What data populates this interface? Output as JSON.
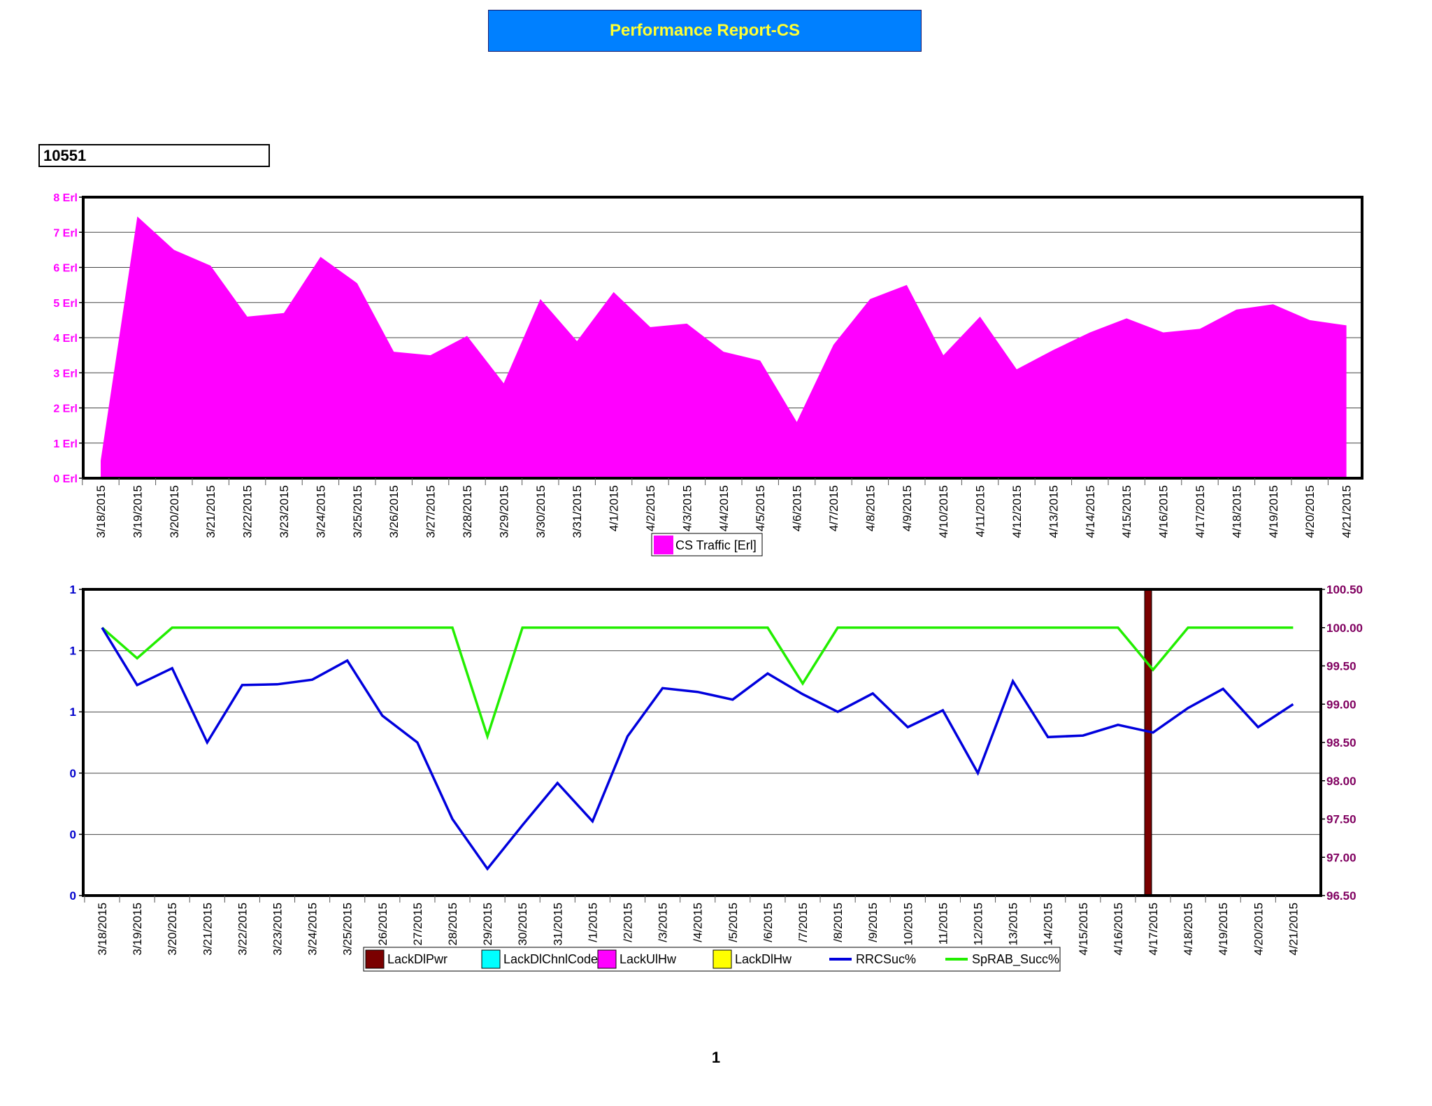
{
  "report": {
    "title": "Performance Report-CS",
    "site_id": "10551",
    "page_number": "1"
  },
  "colors": {
    "title_bg": "#0080ff",
    "title_text": "#ffff33",
    "traffic": "#ff00ff",
    "rrc": "#0000dd",
    "sprab": "#22ee00",
    "left_axis": "#0000cc",
    "right_axis": "#800060",
    "lack_dl_pwr": "#7a0000",
    "lack_dl_chnl_code": "#00ffff",
    "lack_ul_hw": "#ff00ff",
    "lack_dl_hw": "#ffff00"
  },
  "chart_data": [
    {
      "type": "area",
      "categories": [
        "3/18/2015",
        "3/19/2015",
        "3/20/2015",
        "3/21/2015",
        "3/22/2015",
        "3/23/2015",
        "3/24/2015",
        "3/25/2015",
        "3/26/2015",
        "3/27/2015",
        "3/28/2015",
        "3/29/2015",
        "3/30/2015",
        "3/31/2015",
        "4/1/2015",
        "4/2/2015",
        "4/3/2015",
        "4/4/2015",
        "4/5/2015",
        "4/6/2015",
        "4/7/2015",
        "4/8/2015",
        "4/9/2015",
        "4/10/2015",
        "4/11/2015",
        "4/12/2015",
        "4/13/2015",
        "4/14/2015",
        "4/15/2015",
        "4/16/2015",
        "4/17/2015",
        "4/18/2015",
        "4/19/2015",
        "4/20/2015",
        "4/21/2015"
      ],
      "series": [
        {
          "name": "CS Traffic [Erl]",
          "values": [
            0.5,
            7.45,
            6.5,
            6.05,
            4.6,
            4.7,
            6.3,
            5.55,
            3.6,
            3.5,
            4.05,
            2.7,
            5.1,
            3.9,
            5.3,
            4.3,
            4.4,
            3.6,
            3.35,
            1.6,
            3.8,
            5.1,
            5.5,
            3.5,
            4.6,
            3.1,
            3.65,
            4.15,
            4.55,
            4.15,
            4.25,
            4.8,
            4.95,
            4.5,
            4.35
          ]
        }
      ],
      "yticks": [
        "0 Erl",
        "1 Erl",
        "2 Erl",
        "3 Erl",
        "4 Erl",
        "5 Erl",
        "6 Erl",
        "7 Erl",
        "8 Erl"
      ],
      "ylim": [
        0,
        8
      ],
      "grid": true,
      "legend_position": "bottom-center"
    },
    {
      "type": "line",
      "categories": [
        "3/18/2015",
        "3/19/2015",
        "3/20/2015",
        "3/21/2015",
        "3/22/2015",
        "3/23/2015",
        "3/24/2015",
        "3/25/2015",
        "3/26/2015",
        "3/27/2015",
        "3/28/2015",
        "3/29/2015",
        "3/30/2015",
        "3/31/2015",
        "4/1/2015",
        "4/2/2015",
        "4/3/2015",
        "4/4/2015",
        "4/5/2015",
        "4/6/2015",
        "4/7/2015",
        "4/8/2015",
        "4/9/2015",
        "4/10/2015",
        "4/11/2015",
        "4/12/2015",
        "4/13/2015",
        "4/14/2015",
        "4/15/2015",
        "4/16/2015",
        "4/17/2015",
        "4/18/2015",
        "4/19/2015",
        "4/20/2015",
        "4/21/2015"
      ],
      "tick_labels": [
        "3/18/2015",
        "3/19/2015",
        "3/20/2015",
        "3/21/2015",
        "3/22/2015",
        "3/23/2015",
        "3/24/2015",
        "3/25/2015",
        "26/2015",
        "27/2015",
        "28/2015",
        "29/2015",
        "30/2015",
        "31/2015",
        "/1/2015",
        "/2/2015",
        "/3/2015",
        "/4/2015",
        "/5/2015",
        "/6/2015",
        "/7/2015",
        "/8/2015",
        "/9/2015",
        "10/2015",
        "11/2015",
        "12/2015",
        "13/2015",
        "14/2015",
        "4/15/2015",
        "4/16/2015",
        "4/17/2015",
        "4/18/2015",
        "4/19/2015",
        "4/20/2015",
        "4/21/2015"
      ],
      "series": [
        {
          "name": "LackDlPwr",
          "type": "bar",
          "values": [
            0,
            0,
            0,
            0,
            0,
            0,
            0,
            0,
            0,
            0,
            0,
            0,
            0,
            0,
            0,
            0,
            0,
            0,
            0,
            0,
            0,
            0,
            0,
            0,
            0,
            0,
            0,
            0,
            0,
            0,
            1,
            0,
            0,
            0,
            0
          ]
        },
        {
          "name": "LackDlChnlCode",
          "type": "bar",
          "values": [
            0,
            0,
            0,
            0,
            0,
            0,
            0,
            0,
            0,
            0,
            0,
            0,
            0,
            0,
            0,
            0,
            0,
            0,
            0,
            0,
            0,
            0,
            0,
            0,
            0,
            0,
            0,
            0,
            0,
            0,
            0,
            0,
            0,
            0,
            0
          ]
        },
        {
          "name": "LackUlHw",
          "type": "bar",
          "values": [
            0,
            0,
            0,
            0,
            0,
            0,
            0,
            0,
            0,
            0,
            0,
            0,
            0,
            0,
            0,
            0,
            0,
            0,
            0,
            0,
            0,
            0,
            0,
            0,
            0,
            0,
            0,
            0,
            0,
            0,
            0,
            0,
            0,
            0,
            0
          ]
        },
        {
          "name": "LackDlHw",
          "type": "bar",
          "values": [
            0,
            0,
            0,
            0,
            0,
            0,
            0,
            0,
            0,
            0,
            0,
            0,
            0,
            0,
            0,
            0,
            0,
            0,
            0,
            0,
            0,
            0,
            0,
            0,
            0,
            0,
            0,
            0,
            0,
            0,
            0,
            0,
            0,
            0,
            0
          ]
        },
        {
          "name": "RRCSuc%",
          "axis": "right",
          "values": [
            100.0,
            99.25,
            99.47,
            98.5,
            99.25,
            99.26,
            99.32,
            99.57,
            98.85,
            98.5,
            97.5,
            96.85,
            97.42,
            97.97,
            97.47,
            98.58,
            99.21,
            99.16,
            99.06,
            99.4,
            99.13,
            98.9,
            99.14,
            98.7,
            98.92,
            98.1,
            99.3,
            98.57,
            98.59,
            98.73,
            98.63,
            98.95,
            99.2,
            98.7,
            99.0
          ]
        },
        {
          "name": "SpRAB_Succ%",
          "axis": "right",
          "values": [
            100.0,
            99.6,
            100.0,
            100.0,
            100.0,
            100.0,
            100.0,
            100.0,
            100.0,
            100.0,
            100.0,
            98.58,
            100.0,
            100.0,
            100.0,
            100.0,
            100.0,
            100.0,
            100.0,
            100.0,
            99.27,
            100.0,
            100.0,
            100.0,
            100.0,
            100.0,
            100.0,
            100.0,
            100.0,
            100.0,
            99.45,
            100.0,
            100.0,
            100.0,
            100.0
          ]
        }
      ],
      "yticks_left": [
        "0",
        "0",
        "0",
        "1",
        "1",
        "1"
      ],
      "ylim_left": [
        0,
        1
      ],
      "yticks_right": [
        "96.50",
        "97.00",
        "97.50",
        "98.00",
        "98.50",
        "99.00",
        "99.50",
        "100.00",
        "100.50"
      ],
      "ylim_right": [
        96.5,
        100.5
      ],
      "grid": true,
      "legend_position": "bottom-center"
    }
  ]
}
